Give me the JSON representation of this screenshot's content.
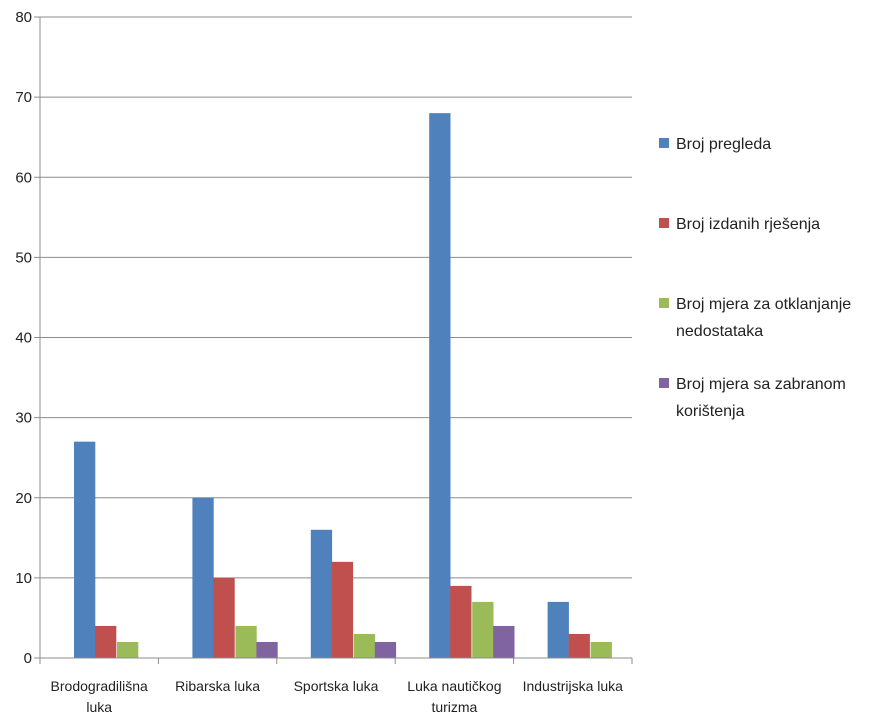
{
  "chart_data": {
    "type": "bar",
    "title": "",
    "xlabel": "",
    "ylabel": "",
    "ylim": [
      0,
      80
    ],
    "yticks": [
      0,
      10,
      20,
      30,
      40,
      50,
      60,
      70,
      80
    ],
    "grid": true,
    "legend_position": "right",
    "categories": [
      [
        "Brodogradilišna",
        "luka"
      ],
      [
        "Ribarska luka"
      ],
      [
        "Sportska luka"
      ],
      [
        "Luka nautičkog",
        "turizma"
      ],
      [
        "Industrijska luka"
      ]
    ],
    "series": [
      {
        "name": [
          "Broj pregleda"
        ],
        "color": "#4f81bd",
        "values": [
          27,
          20,
          16,
          68,
          7
        ]
      },
      {
        "name": [
          "Broj izdanih rješenja"
        ],
        "color": "#c0504d",
        "values": [
          4,
          10,
          12,
          9,
          3
        ]
      },
      {
        "name": [
          "Broj mjera za otklanjanje",
          "nedostataka"
        ],
        "color": "#9bbb59",
        "values": [
          2,
          4,
          3,
          7,
          2
        ]
      },
      {
        "name": [
          "Broj mjera sa zabranom",
          "korištenja"
        ],
        "color": "#8064a2",
        "values": [
          0,
          2,
          2,
          4,
          0
        ]
      }
    ]
  }
}
